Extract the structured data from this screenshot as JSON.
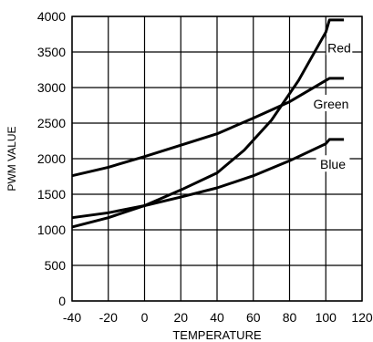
{
  "chart_data": {
    "type": "line",
    "title": "",
    "xlabel": "TEMPERATURE",
    "ylabel": "PWM VALUE",
    "xlim": [
      -40,
      120
    ],
    "ylim": [
      0,
      4000
    ],
    "x_ticks": [
      -40,
      -20,
      0,
      20,
      40,
      60,
      80,
      100,
      120
    ],
    "y_ticks": [
      0,
      500,
      1000,
      1500,
      2000,
      2500,
      3000,
      3500,
      4000
    ],
    "grid": true,
    "legend": "inline labels at right end of each line",
    "series": [
      {
        "name": "Red",
        "x": [
          -40,
          -20,
          0,
          20,
          40,
          55,
          70,
          85,
          100,
          102,
          110
        ],
        "y": [
          1040,
          1170,
          1340,
          1560,
          1800,
          2120,
          2540,
          3100,
          3780,
          3950,
          3950
        ]
      },
      {
        "name": "Green",
        "x": [
          -40,
          -20,
          0,
          20,
          40,
          60,
          80,
          100,
          102,
          110
        ],
        "y": [
          1760,
          1880,
          2030,
          2190,
          2350,
          2570,
          2800,
          3100,
          3130,
          3130
        ]
      },
      {
        "name": "Blue",
        "x": [
          -40,
          -20,
          0,
          20,
          40,
          60,
          80,
          100,
          102,
          110
        ],
        "y": [
          1170,
          1240,
          1340,
          1460,
          1590,
          1760,
          1970,
          2210,
          2270,
          2270
        ]
      }
    ]
  }
}
